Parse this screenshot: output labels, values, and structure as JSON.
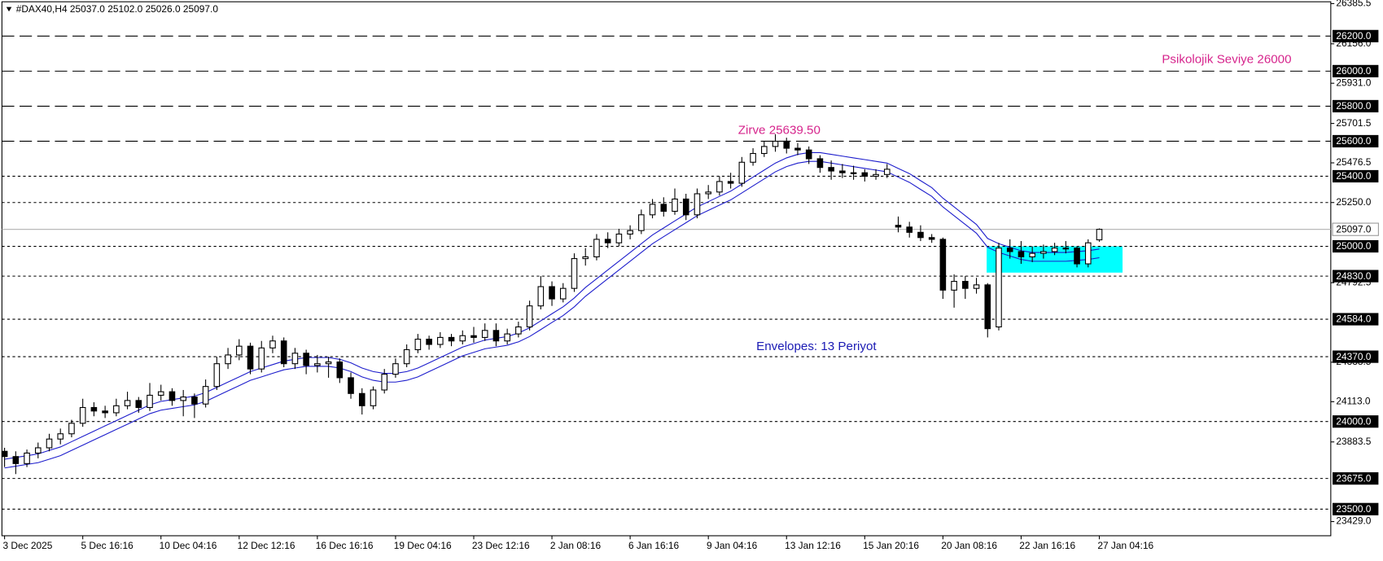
{
  "chart_data": {
    "type": "candlestick",
    "header": "#DAX40,H4  25037.0 25102.0 25026.0 25097.0",
    "ylim": [
      23348,
      26396
    ],
    "yticks": [
      {
        "value": 26385.5,
        "label": "26385.5"
      },
      {
        "value": 26156,
        "label": "26156.0"
      },
      {
        "value": 25931,
        "label": "25931.0"
      },
      {
        "value": 25701.5,
        "label": "25701.5"
      },
      {
        "value": 25476.5,
        "label": "25476.5"
      },
      {
        "value": 25250,
        "label": "25250.0"
      },
      {
        "value": 24792.5,
        "label": "24792.5"
      },
      {
        "value": 24338.5,
        "label": "24338.5"
      },
      {
        "value": 24113,
        "label": "24113.0"
      },
      {
        "value": 23883.5,
        "label": "23883.5"
      },
      {
        "value": 23429,
        "label": "23429.0"
      }
    ],
    "levels": [
      {
        "value": 26200,
        "label": "26200.0",
        "style": "dashed"
      },
      {
        "value": 26000,
        "label": "26000.0",
        "style": "dashed"
      },
      {
        "value": 25800,
        "label": "25800.0",
        "style": "dashed"
      },
      {
        "value": 25600,
        "label": "25600.0",
        "style": "dashed"
      },
      {
        "value": 25400,
        "label": "25400.0",
        "style": "dotted"
      },
      {
        "value": 25250,
        "style": "dotted"
      },
      {
        "value": 25000,
        "label": "25000.0",
        "style": "dotted"
      },
      {
        "value": 24830,
        "label": "24830.0",
        "style": "dotted"
      },
      {
        "value": 24584,
        "label": "24584.0",
        "style": "dotted"
      },
      {
        "value": 24370,
        "label": "24370.0",
        "style": "dotted"
      },
      {
        "value": 24000,
        "label": "24000.0",
        "style": "dotted"
      },
      {
        "value": 23675,
        "label": "23675.0",
        "style": "dotted"
      },
      {
        "value": 23500,
        "label": "23500.0",
        "style": "dotted"
      }
    ],
    "last_price": {
      "value": 25097,
      "label": "25097.0"
    },
    "zone": {
      "color": "#00ffff",
      "ylim": [
        24850,
        25000
      ]
    },
    "annotations": [
      {
        "text": "Psikolojik Seviye 26000",
        "color": "#d6248c"
      },
      {
        "text": "Zirve 25639.50",
        "color": "#d6248c"
      },
      {
        "text": "Envelopes: 13 Periyot",
        "color": "#1a1ab4"
      }
    ],
    "categories": [
      "3 Dec 2025",
      null,
      null,
      null,
      null,
      null,
      null,
      "5 Dec 16:16",
      null,
      null,
      null,
      null,
      null,
      null,
      "10 Dec 04:16",
      null,
      null,
      null,
      null,
      null,
      null,
      "12 Dec 12:16",
      null,
      null,
      null,
      null,
      null,
      null,
      "16 Dec 16:16",
      null,
      null,
      null,
      null,
      null,
      null,
      "19 Dec 04:16",
      null,
      null,
      null,
      null,
      null,
      null,
      "23 Dec 12:16",
      null,
      null,
      null,
      null,
      null,
      null,
      "2 Jan 08:16",
      null,
      null,
      null,
      null,
      null,
      null,
      "6 Jan 16:16",
      null,
      null,
      null,
      null,
      null,
      null,
      "9 Jan 04:16",
      null,
      null,
      null,
      null,
      null,
      null,
      "13 Jan 12:16",
      null,
      null,
      null,
      null,
      null,
      null,
      "15 Jan 20:16",
      null,
      null,
      null,
      null,
      null,
      null,
      "20 Jan 08:16",
      null,
      null,
      null,
      null,
      null,
      null,
      "22 Jan 16:16",
      null,
      null,
      null,
      null,
      null,
      null,
      "27 Jan 04:16"
    ],
    "candles": [
      [
        23830,
        23850,
        23740,
        23800
      ],
      [
        23800,
        23830,
        23700,
        23760
      ],
      [
        23760,
        23840,
        23740,
        23820
      ],
      [
        23820,
        23880,
        23790,
        23850
      ],
      [
        23850,
        23930,
        23830,
        23900
      ],
      [
        23900,
        23960,
        23870,
        23930
      ],
      [
        23930,
        24010,
        23910,
        23990
      ],
      [
        23990,
        24130,
        23970,
        24080
      ],
      [
        24080,
        24110,
        24030,
        24060
      ],
      [
        24060,
        24090,
        24020,
        24050
      ],
      [
        24050,
        24130,
        24030,
        24090
      ],
      [
        24090,
        24170,
        24070,
        24120
      ],
      [
        24120,
        24140,
        24050,
        24080
      ],
      [
        24080,
        24220,
        24060,
        24150
      ],
      [
        24150,
        24210,
        24120,
        24170
      ],
      [
        24170,
        24190,
        24090,
        24120
      ],
      [
        24120,
        24180,
        24030,
        24140
      ],
      [
        24140,
        24160,
        24020,
        24100
      ],
      [
        24100,
        24240,
        24080,
        24200
      ],
      [
        24200,
        24370,
        24180,
        24330
      ],
      [
        24330,
        24420,
        24300,
        24380
      ],
      [
        24380,
        24470,
        24350,
        24430
      ],
      [
        24430,
        24450,
        24270,
        24300
      ],
      [
        24300,
        24460,
        24280,
        24420
      ],
      [
        24420,
        24490,
        24390,
        24460
      ],
      [
        24460,
        24480,
        24310,
        24330
      ],
      [
        24330,
        24420,
        24300,
        24390
      ],
      [
        24390,
        24410,
        24270,
        24320
      ],
      [
        24320,
        24380,
        24280,
        24330
      ],
      [
        24330,
        24370,
        24250,
        24340
      ],
      [
        24340,
        24360,
        24220,
        24250
      ],
      [
        24250,
        24280,
        24130,
        24160
      ],
      [
        24160,
        24190,
        24040,
        24090
      ],
      [
        24090,
        24200,
        24070,
        24180
      ],
      [
        24180,
        24300,
        24160,
        24270
      ],
      [
        24270,
        24360,
        24250,
        24330
      ],
      [
        24330,
        24440,
        24310,
        24410
      ],
      [
        24410,
        24500,
        24390,
        24470
      ],
      [
        24470,
        24490,
        24410,
        24440
      ],
      [
        24440,
        24510,
        24420,
        24480
      ],
      [
        24480,
        24500,
        24430,
        24460
      ],
      [
        24460,
        24520,
        24440,
        24490
      ],
      [
        24490,
        24540,
        24450,
        24480
      ],
      [
        24480,
        24560,
        24460,
        24520
      ],
      [
        24520,
        24560,
        24430,
        24460
      ],
      [
        24460,
        24530,
        24440,
        24500
      ],
      [
        24500,
        24570,
        24480,
        24540
      ],
      [
        24540,
        24690,
        24520,
        24660
      ],
      [
        24660,
        24830,
        24640,
        24770
      ],
      [
        24770,
        24800,
        24660,
        24700
      ],
      [
        24700,
        24790,
        24680,
        24760
      ],
      [
        24760,
        24960,
        24740,
        24930
      ],
      [
        24930,
        24990,
        24890,
        24940
      ],
      [
        24940,
        25070,
        24920,
        25040
      ],
      [
        25040,
        25080,
        24990,
        25020
      ],
      [
        25020,
        25100,
        25000,
        25070
      ],
      [
        25070,
        25120,
        25040,
        25090
      ],
      [
        25090,
        25210,
        25070,
        25180
      ],
      [
        25180,
        25270,
        25160,
        25240
      ],
      [
        25240,
        25280,
        25170,
        25200
      ],
      [
        25200,
        25330,
        25180,
        25270
      ],
      [
        25270,
        25300,
        25150,
        25180
      ],
      [
        25180,
        25330,
        25160,
        25300
      ],
      [
        25300,
        25350,
        25270,
        25310
      ],
      [
        25310,
        25400,
        25290,
        25370
      ],
      [
        25370,
        25420,
        25330,
        25360
      ],
      [
        25360,
        25510,
        25340,
        25480
      ],
      [
        25480,
        25560,
        25460,
        25530
      ],
      [
        25530,
        25600,
        25510,
        25570
      ],
      [
        25570,
        25639.5,
        25540,
        25600
      ],
      [
        25600,
        25620,
        25530,
        25560
      ],
      [
        25560,
        25590,
        25520,
        25550
      ],
      [
        25550,
        25570,
        25470,
        25500
      ],
      [
        25500,
        25520,
        25420,
        25450
      ],
      [
        25450,
        25490,
        25380,
        25430
      ],
      [
        25430,
        25470,
        25390,
        25420
      ],
      [
        25420,
        25460,
        25380,
        25420
      ],
      [
        25420,
        25440,
        25370,
        25400
      ],
      [
        25400,
        25440,
        25380,
        25410
      ],
      [
        25410,
        25470,
        25390,
        25440
      ],
      [
        25120,
        25170,
        25080,
        25110
      ],
      [
        25110,
        25140,
        25050,
        25080
      ],
      [
        25080,
        25120,
        25030,
        25050
      ],
      [
        25050,
        25070,
        25020,
        25040
      ],
      [
        25040,
        25050,
        24700,
        24750
      ],
      [
        24750,
        24840,
        24650,
        24800
      ],
      [
        24800,
        24830,
        24700,
        24760
      ],
      [
        24760,
        24820,
        24730,
        24780
      ],
      [
        24780,
        24790,
        24480,
        24530
      ],
      [
        24540,
        25020,
        24520,
        24990
      ],
      [
        24990,
        25040,
        24930,
        24970
      ],
      [
        24970,
        25030,
        24900,
        24940
      ],
      [
        24940,
        25000,
        24910,
        24960
      ],
      [
        24960,
        25010,
        24930,
        24970
      ],
      [
        24970,
        25020,
        24950,
        24990
      ],
      [
        24990,
        25030,
        24960,
        24990
      ],
      [
        24990,
        25000,
        24880,
        24900
      ],
      [
        24900,
        25040,
        24880,
        25020
      ],
      [
        25037,
        25102,
        25026,
        25097
      ]
    ],
    "envelope": {
      "color": "#1c1ccc",
      "upper": [
        23785,
        23795,
        23805,
        23815,
        23835,
        23855,
        23885,
        23915,
        23945,
        23975,
        24005,
        24035,
        24065,
        24095,
        24115,
        24125,
        24135,
        24145,
        24165,
        24195,
        24225,
        24255,
        24285,
        24305,
        24325,
        24345,
        24355,
        24365,
        24365,
        24365,
        24355,
        24335,
        24305,
        24285,
        24275,
        24275,
        24285,
        24305,
        24335,
        24365,
        24395,
        24425,
        24445,
        24465,
        24475,
        24485,
        24505,
        24535,
        24575,
        24615,
        24655,
        24705,
        24765,
        24815,
        24865,
        24915,
        24965,
        25015,
        25065,
        25105,
        25145,
        25185,
        25225,
        25255,
        25285,
        25315,
        25355,
        25395,
        25435,
        25475,
        25505,
        25525,
        25535,
        25535,
        25525,
        25515,
        25505,
        25495,
        25485,
        25475,
        25445,
        25415,
        25375,
        25335,
        25275,
        25225,
        25175,
        25125,
        25045,
        25015,
        24995,
        24975,
        24965,
        24965,
        24965,
        24965,
        24970,
        24975,
        24985
      ],
      "lower": [
        23735,
        23745,
        23755,
        23765,
        23785,
        23805,
        23835,
        23865,
        23895,
        23925,
        23955,
        23985,
        24015,
        24045,
        24065,
        24075,
        24085,
        24095,
        24115,
        24145,
        24175,
        24205,
        24235,
        24255,
        24275,
        24295,
        24305,
        24315,
        24315,
        24315,
        24305,
        24285,
        24255,
        24235,
        24225,
        24225,
        24235,
        24255,
        24285,
        24315,
        24345,
        24375,
        24395,
        24415,
        24425,
        24435,
        24455,
        24485,
        24525,
        24565,
        24605,
        24655,
        24715,
        24765,
        24815,
        24865,
        24915,
        24965,
        25015,
        25055,
        25095,
        25135,
        25175,
        25205,
        25235,
        25265,
        25305,
        25345,
        25385,
        25425,
        25455,
        25475,
        25485,
        25485,
        25475,
        25465,
        25455,
        25445,
        25435,
        25425,
        25395,
        25365,
        25325,
        25285,
        25225,
        25175,
        25125,
        25075,
        24995,
        24965,
        24945,
        24925,
        24915,
        24915,
        24915,
        24915,
        24920,
        24925,
        24935
      ]
    }
  }
}
